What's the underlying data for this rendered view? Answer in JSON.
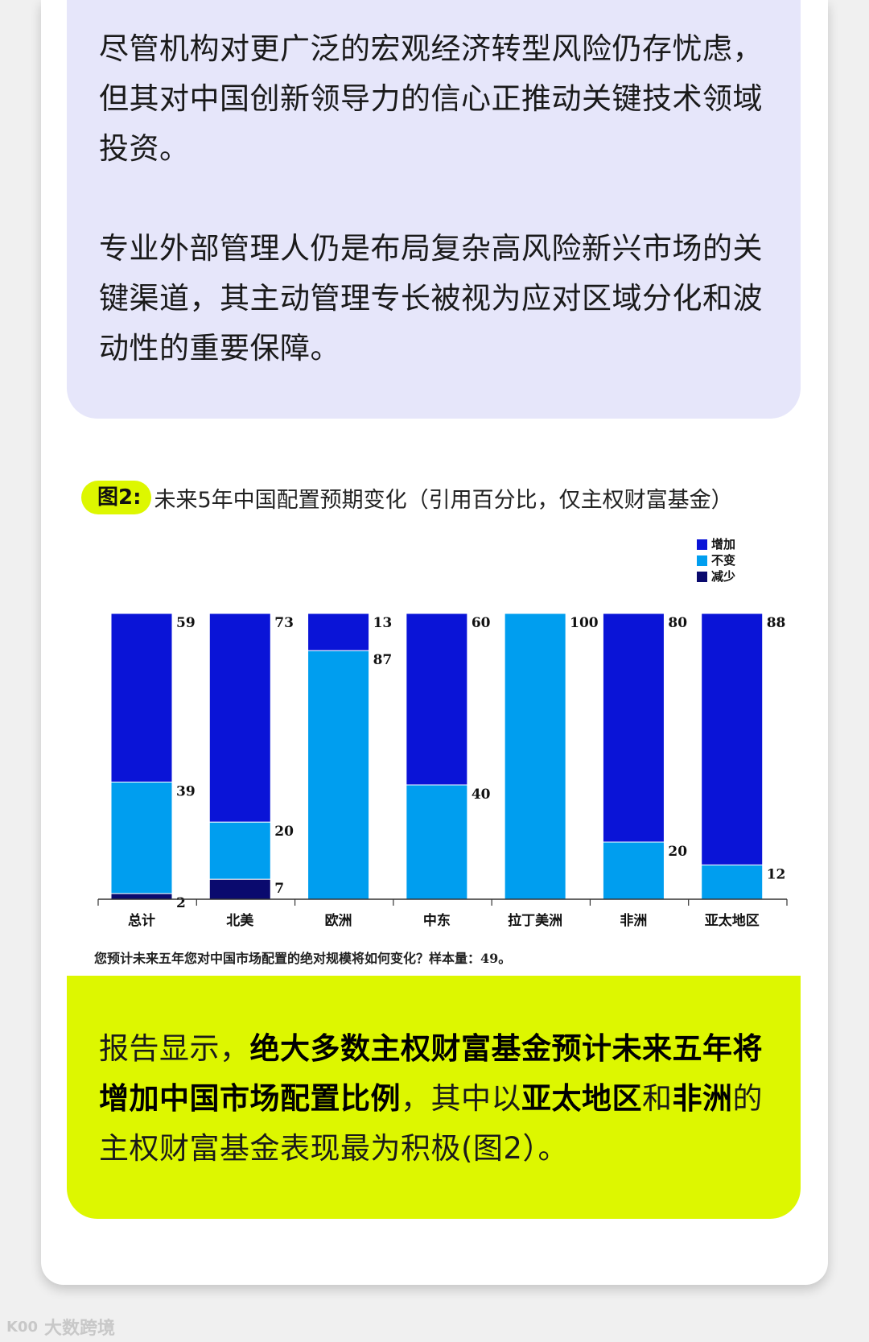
{
  "top_panel": {
    "paragraph1": "尽管机构对更广泛的宏观经济转型风险仍存忧虑，但其对中国创新领导力的信心正推动关键技术领域投资。",
    "paragraph2": "专业外部管理人仍是布局复杂高风险新兴市场的关键渠道，其主动管理专长被视为应对区域分化和波动性的重要保障。"
  },
  "figure": {
    "badge": "图2:",
    "caption": "未来5年中国配置预期变化（引用百分比，仅主权财富基金）"
  },
  "chart_data": {
    "type": "bar",
    "stacked": true,
    "categories": [
      "总计",
      "北美",
      "欧洲",
      "中东",
      "拉丁美洲",
      "非洲",
      "亚太地区"
    ],
    "series": [
      {
        "name": "减少",
        "color": "#0a0a6e",
        "values": [
          2,
          7,
          0,
          0,
          0,
          0,
          0
        ]
      },
      {
        "name": "不变",
        "color": "#009eef",
        "values": [
          39,
          20,
          87,
          40,
          100,
          20,
          12
        ]
      },
      {
        "name": "增加",
        "color": "#0a14d7",
        "values": [
          59,
          73,
          13,
          60,
          0,
          80,
          88
        ]
      }
    ],
    "legend_order": [
      "增加",
      "不变",
      "减少"
    ],
    "legend_position": "top-right",
    "ylim": [
      0,
      100
    ],
    "grid": false
  },
  "chart_note": "您预计未来五年您对中国市场配置的绝对规模将如何变化？样本量：49。",
  "bottom_panel": {
    "t1": "报告显示，",
    "b1": "绝大多数主权财富基金预计未来五年将增加中国市场配置比例",
    "t2": "，其中以",
    "b2": "亚太地区",
    "t3": "和",
    "b3": "非洲",
    "t4": "的主权财富基金表现最为积极(图2）。"
  },
  "watermark": {
    "logo": "K00",
    "text": "大数跨境"
  }
}
